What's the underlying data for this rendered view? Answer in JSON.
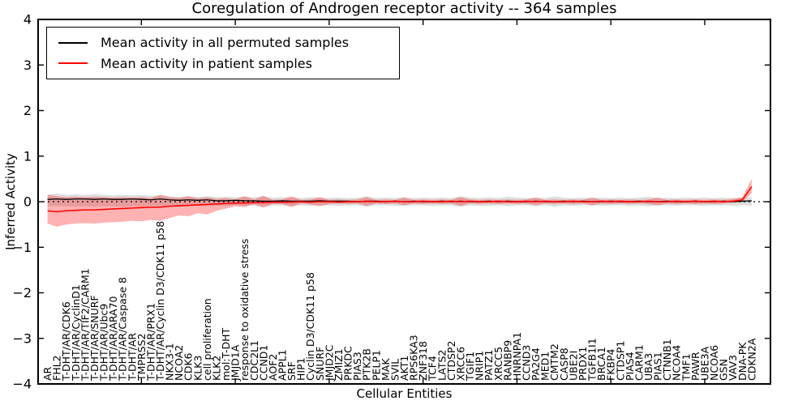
{
  "chart_data": {
    "type": "line",
    "title": "Coregulation of Androgen receptor activity -- 364 samples",
    "xlabel": "Cellular Entities",
    "ylabel": "Inferred Activity",
    "ylim": [
      -4,
      4
    ],
    "yticks": [
      4,
      3,
      2,
      1,
      0,
      -1,
      -2,
      -3,
      -4
    ],
    "xticks": [
      10,
      20,
      30,
      40,
      50,
      60,
      70
    ],
    "grid": false,
    "legend_position": "upper left",
    "zero_line_style": "dotted",
    "categories": [
      "AR",
      "FHL2",
      "T-DHT/AR/CDK6",
      "T-DHT/AR/CyclinD1",
      "T-DHT/AR/TIF2/CARM1",
      "T-DHT/AR/SNURF",
      "T-DHT/AR/Ubc9",
      "T-DHT/AR/ARA70",
      "T-DHT/AR/Caspase 8",
      "T-DHT/AR",
      "TMPRSS2",
      "T-DHT/AR/PRX1",
      "T-DHT/AR/Cyclin D3/CDK11 p58",
      "NKX3-1",
      "NCOA2",
      "CDK6",
      "KLK3",
      "cell proliferation",
      "KLK2",
      "mol:T-DHT",
      "JMJD1A",
      "response to oxidative stress",
      "CDC2L1",
      "CCND1",
      "AOF2",
      "APPL1",
      "SRF",
      "HIP1",
      "Cyclin D3/CDK11 p58",
      "SNURF",
      "JMJD2C",
      "ZMIZ1",
      "PRKDC",
      "PIAS3",
      "PTK2B",
      "PELP1",
      "MAK",
      "SVIL",
      "AKT1",
      "RPS6KA3",
      "ZNF318",
      "TCF4",
      "LATS2",
      "CTDSP2",
      "XRCC6",
      "TGIF1",
      "NRIP1",
      "PATZ1",
      "XRCC5",
      "RANBP9",
      "HNRNPA1",
      "CCND3",
      "PA2G4",
      "MED1",
      "CMTM2",
      "CASP8",
      "UBE2I",
      "PRDX1",
      "TGFB1I1",
      "BRCA1",
      "FKBP4",
      "CTDSP1",
      "PIAS4",
      "CARM1",
      "UBA3",
      "PIAS1",
      "CTNNB1",
      "NCOA4",
      "TMF1",
      "PAWR",
      "UBE3A",
      "NCOA6",
      "GSN",
      "VAV3",
      "DNA-PK",
      "CDKN2A"
    ],
    "series": [
      {
        "name": "Mean activity in all permuted samples",
        "color": "#000000",
        "band_fill": "#000000",
        "band_opacity": 0.13,
        "line_width": 1.3,
        "values": [
          0.05,
          0.06,
          0.05,
          0.06,
          0.06,
          0.05,
          0.06,
          0.05,
          0.05,
          0.06,
          0.05,
          0.04,
          0.06,
          0.04,
          0.03,
          0.04,
          0.03,
          0.04,
          0.02,
          0.02,
          0.03,
          0.02,
          0.02,
          0.01,
          0.01,
          0.02,
          0.01,
          0.01,
          0.01,
          0.02,
          0.01,
          0.01,
          0.01,
          0,
          0.01,
          0.01,
          0,
          0.01,
          0,
          0.01,
          0,
          0,
          0.01,
          0,
          0.01,
          0,
          0,
          0.01,
          0,
          0.01,
          0,
          0,
          0.01,
          0,
          0,
          0.01,
          0,
          0.01,
          0,
          0,
          0.01,
          0,
          0,
          0.01,
          0,
          0,
          0.01,
          0,
          0,
          0.01,
          0,
          0,
          0.01,
          0,
          0.01,
          0.02
        ],
        "band_upper": [
          0.16,
          0.18,
          0.15,
          0.16,
          0.15,
          0.16,
          0.15,
          0.14,
          0.15,
          0.14,
          0.15,
          0.13,
          0.14,
          0.12,
          0.11,
          0.12,
          0.11,
          0.12,
          0.1,
          0.11,
          0.1,
          0.11,
          0.1,
          0.12,
          0.09,
          0.1,
          0.09,
          0.08,
          0.1,
          0.09,
          0.08,
          0.09,
          0.08,
          0.09,
          0.12,
          0.08,
          0.09,
          0.08,
          0.1,
          0.08,
          0.09,
          0.08,
          0.09,
          0.08,
          0.12,
          0.09,
          0.08,
          0.1,
          0.08,
          0.11,
          0.09,
          0.08,
          0.09,
          0.08,
          0.12,
          0.09,
          0.08,
          0.09,
          0.08,
          0.09,
          0.08,
          0.09,
          0.08,
          0.09,
          0.11,
          0.08,
          0.09,
          0.08,
          0.09,
          0.08,
          0.09,
          0.08,
          0.09,
          0.08,
          0.09,
          0.1
        ],
        "band_lower": [
          -0.1,
          -0.09,
          -0.1,
          -0.11,
          -0.1,
          -0.11,
          -0.1,
          -0.1,
          -0.11,
          -0.1,
          -0.1,
          -0.09,
          -0.1,
          -0.09,
          -0.09,
          -0.1,
          -0.09,
          -0.1,
          -0.09,
          -0.09,
          -0.08,
          -0.09,
          -0.08,
          -0.1,
          -0.08,
          -0.09,
          -0.08,
          -0.08,
          -0.09,
          -0.08,
          -0.08,
          -0.09,
          -0.08,
          -0.08,
          -0.11,
          -0.08,
          -0.08,
          -0.09,
          -0.09,
          -0.08,
          -0.08,
          -0.09,
          -0.08,
          -0.08,
          -0.11,
          -0.08,
          -0.09,
          -0.09,
          -0.08,
          -0.1,
          -0.08,
          -0.08,
          -0.09,
          -0.08,
          -0.11,
          -0.08,
          -0.09,
          -0.08,
          -0.08,
          -0.09,
          -0.08,
          -0.08,
          -0.09,
          -0.08,
          -0.1,
          -0.08,
          -0.08,
          -0.09,
          -0.08,
          -0.08,
          -0.09,
          -0.08,
          -0.08,
          -0.09,
          -0.08,
          -0.09
        ]
      },
      {
        "name": "Mean activity in patient samples",
        "color": "#ff0000",
        "band_fill": "#ff0000",
        "band_opacity": 0.3,
        "line_width": 1.6,
        "values": [
          -0.2,
          -0.22,
          -0.2,
          -0.19,
          -0.18,
          -0.18,
          -0.17,
          -0.16,
          -0.15,
          -0.14,
          -0.13,
          -0.12,
          -0.12,
          -0.1,
          -0.09,
          -0.08,
          -0.07,
          -0.06,
          -0.05,
          -0.04,
          -0.03,
          -0.03,
          -0.02,
          -0.02,
          -0.01,
          -0.01,
          -0.01,
          0,
          -0.01,
          0,
          0,
          -0.01,
          0,
          0,
          0.01,
          0,
          0,
          0.01,
          0,
          0,
          0.01,
          0,
          0,
          0.01,
          0,
          0.01,
          0,
          0,
          0.01,
          0,
          0,
          0.01,
          0,
          0.01,
          0,
          0,
          0.01,
          0,
          0,
          0.01,
          0,
          0.01,
          0,
          0,
          0.01,
          0,
          0,
          0.01,
          0,
          0.01,
          0,
          0.01,
          0,
          0.01,
          0.04,
          0.33
        ],
        "band_upper": [
          0.15,
          0.12,
          0.1,
          0.11,
          0.1,
          0.11,
          0.1,
          0.09,
          0.1,
          0.09,
          0.1,
          0.08,
          0.15,
          0.1,
          0.08,
          0.12,
          0.07,
          0.1,
          0.06,
          0.08,
          0.05,
          0.12,
          0.05,
          0.13,
          0.04,
          0.05,
          0.12,
          0.04,
          0.05,
          0.1,
          0.04,
          0.05,
          0.04,
          0.05,
          0.1,
          0.04,
          0.05,
          0.04,
          0.09,
          0.04,
          0.05,
          0.04,
          0.05,
          0.04,
          0.1,
          0.05,
          0.04,
          0.05,
          0.04,
          0.05,
          0.04,
          0.05,
          0.09,
          0.04,
          0.05,
          0.04,
          0.05,
          0.04,
          0.09,
          0.04,
          0.05,
          0.04,
          0.05,
          0.04,
          0.05,
          0.09,
          0.04,
          0.05,
          0.04,
          0.05,
          0.04,
          0.05,
          0.04,
          0.06,
          0.1,
          0.5
        ],
        "band_lower": [
          -0.48,
          -0.55,
          -0.5,
          -0.48,
          -0.47,
          -0.48,
          -0.46,
          -0.45,
          -0.44,
          -0.42,
          -0.43,
          -0.4,
          -0.42,
          -0.36,
          -0.3,
          -0.32,
          -0.25,
          -0.28,
          -0.2,
          -0.15,
          -0.1,
          -0.12,
          -0.06,
          -0.13,
          -0.05,
          -0.05,
          -0.12,
          -0.04,
          -0.06,
          -0.1,
          -0.05,
          -0.04,
          -0.05,
          -0.04,
          -0.09,
          -0.04,
          -0.05,
          -0.04,
          -0.08,
          -0.04,
          -0.05,
          -0.04,
          -0.05,
          -0.04,
          -0.09,
          -0.04,
          -0.05,
          -0.04,
          -0.05,
          -0.04,
          -0.05,
          -0.04,
          -0.08,
          -0.04,
          -0.05,
          -0.04,
          -0.05,
          -0.04,
          -0.08,
          -0.04,
          -0.05,
          -0.04,
          -0.05,
          -0.04,
          -0.05,
          -0.08,
          -0.04,
          -0.05,
          -0.04,
          -0.05,
          -0.04,
          -0.05,
          -0.04,
          -0.02,
          0.0,
          0.18
        ]
      }
    ]
  }
}
